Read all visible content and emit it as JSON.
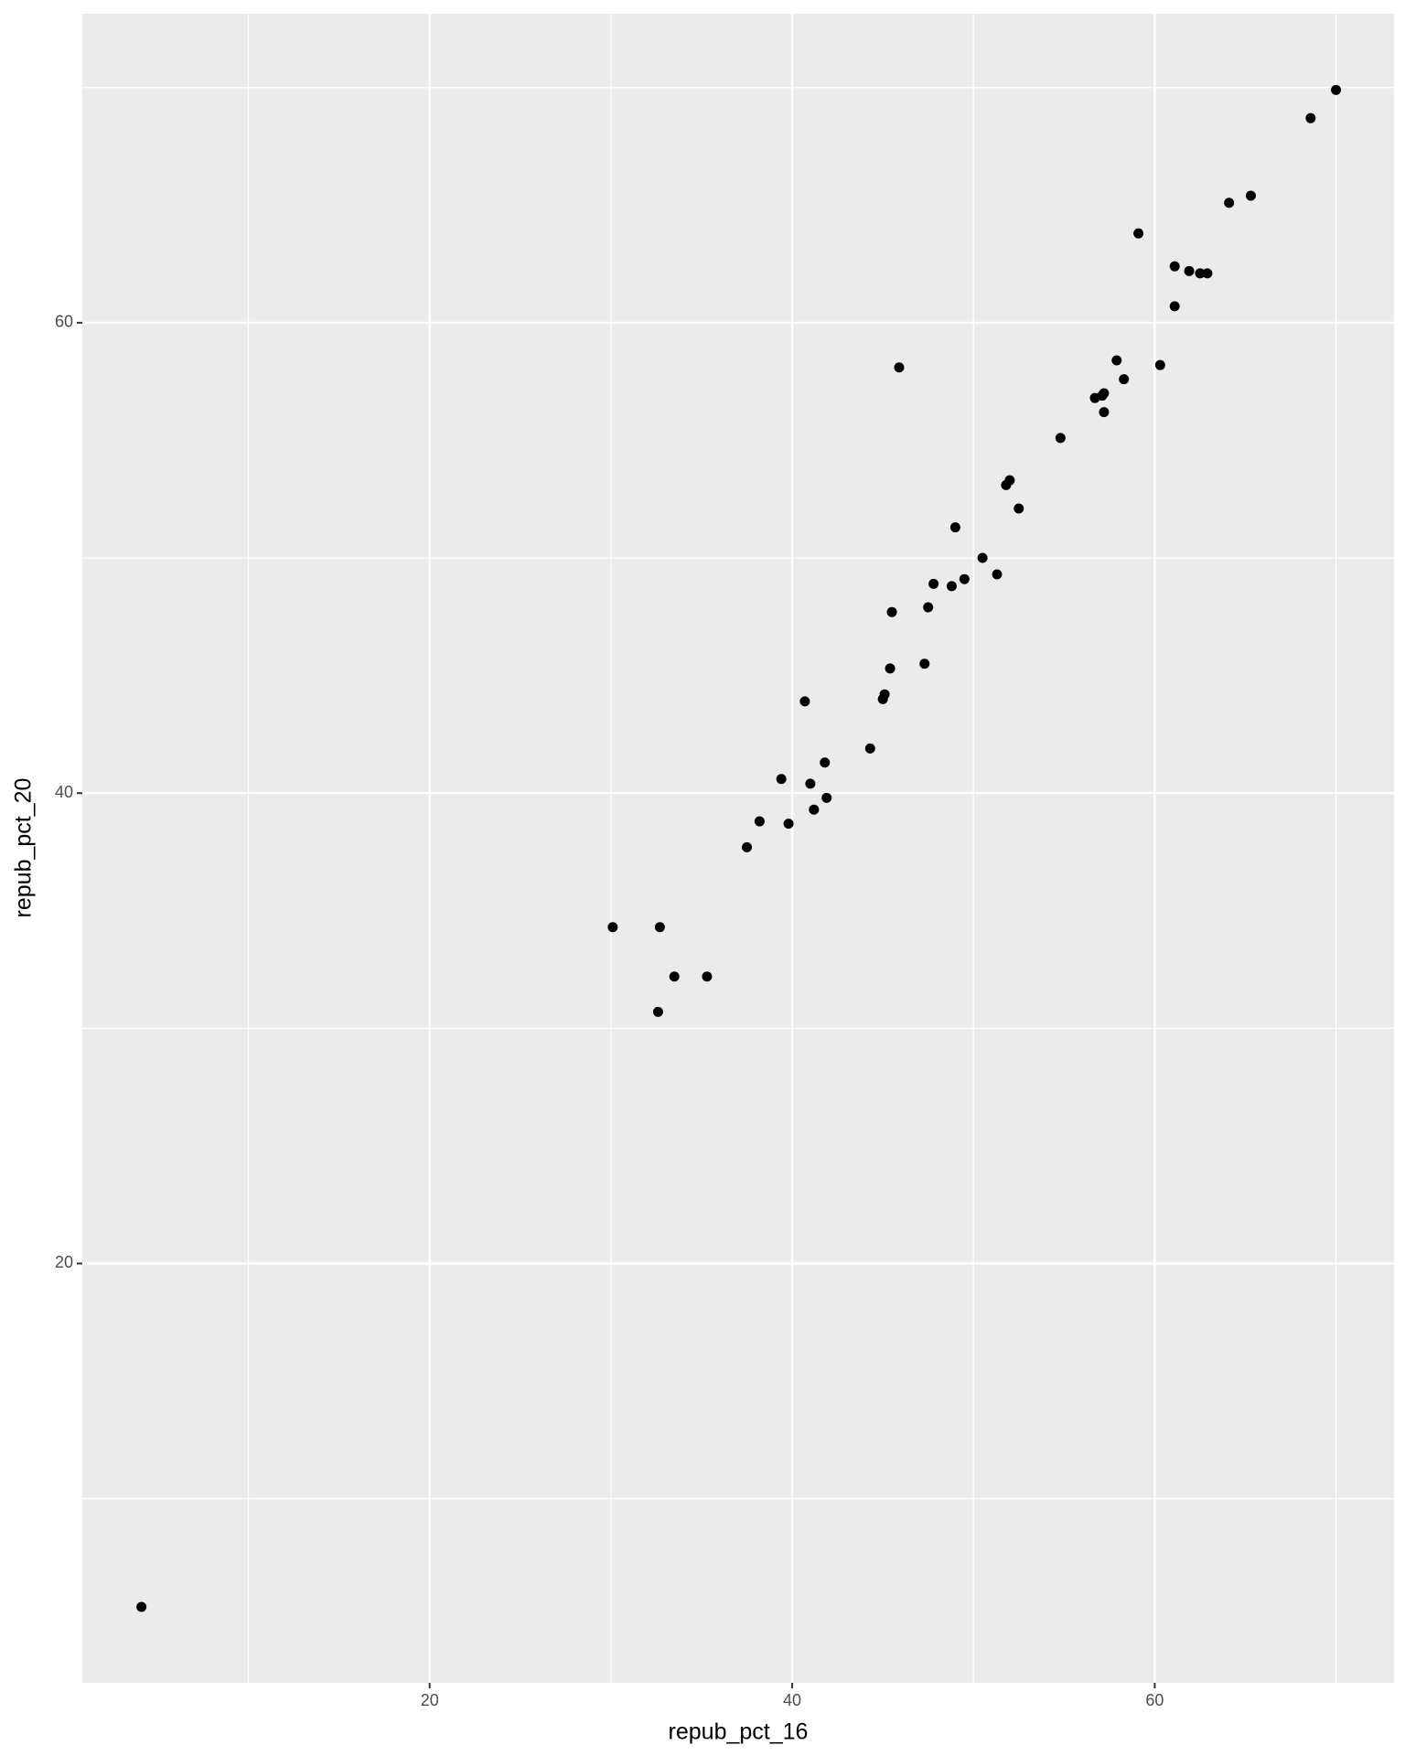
{
  "chart_data": {
    "type": "scatter",
    "x_label": "repub_pct_16",
    "y_label": "repub_pct_20",
    "x": [
      4.1,
      70.0,
      68.6,
      65.3,
      64.1,
      59.1,
      61.1,
      61.9,
      62.5,
      62.9,
      61.1,
      45.9,
      57.9,
      60.3,
      58.3,
      56.7,
      57.1,
      57.2,
      57.2,
      54.8,
      51.8,
      52.0,
      52.5,
      49.0,
      50.5,
      51.3,
      49.5,
      48.8,
      47.8,
      47.5,
      45.5,
      45.4,
      47.3,
      45.1,
      45.0,
      40.7,
      44.3,
      41.8,
      39.4,
      41.0,
      41.9,
      41.2,
      38.2,
      39.8,
      37.5,
      30.1,
      32.7,
      33.5,
      35.3,
      32.6
    ],
    "values": [
      5.4,
      69.9,
      68.7,
      65.4,
      65.1,
      63.8,
      62.4,
      62.2,
      62.1,
      62.1,
      60.7,
      58.1,
      58.4,
      58.2,
      57.6,
      56.8,
      56.9,
      57.0,
      56.2,
      55.1,
      53.1,
      53.3,
      52.1,
      51.3,
      50.0,
      49.3,
      49.1,
      48.8,
      48.9,
      47.9,
      47.7,
      45.3,
      45.5,
      44.2,
      44.0,
      43.9,
      41.9,
      41.3,
      40.6,
      40.4,
      39.8,
      39.3,
      38.8,
      38.7,
      37.7,
      34.3,
      34.3,
      32.2,
      32.2,
      30.7
    ],
    "color": "#000000",
    "xlim": [
      0.84,
      73.2
    ],
    "ylim": [
      2.17,
      73.14
    ],
    "xticks": [
      20,
      40,
      60
    ],
    "yticks": [
      20,
      40,
      60
    ],
    "grid": true
  }
}
